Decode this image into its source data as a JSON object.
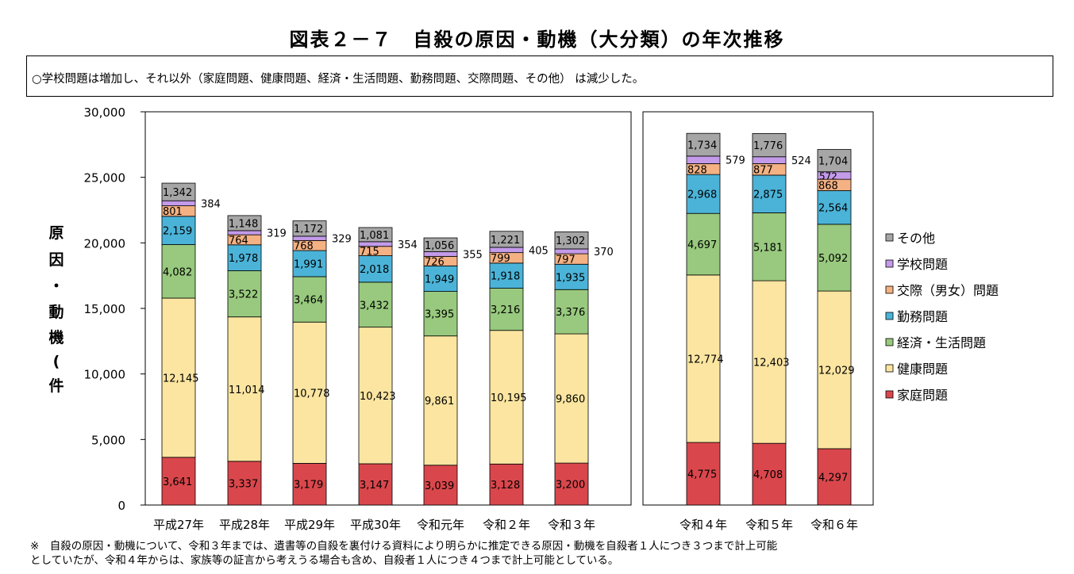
{
  "title": "図表２－７　自殺の原因・動機（大分類）の年次推移",
  "summary": "○学校問題は増加し、それ以外（家庭問題、健康問題、経済・生活問題、勤務問題、交際問題、その他） は減少した。",
  "footnote": {
    "line1": "※　自殺の原因・動機について、令和３年までは、遺書等の自殺を裏付ける資料により明らかに推定できる原因・動機を自殺者１人につき３つまで計上可能",
    "line2": "としていたが、令和４年からは、家族等の証言から考えうる場合も含め、自殺者１人につき４つまで計上可能としている。"
  },
  "chart_data": {
    "type": "bar",
    "stacked": true,
    "title": "",
    "ylabel": "原因・動機(件)",
    "ylim": [
      0,
      30000
    ],
    "yticks": [
      "0",
      "5,000",
      "10,000",
      "15,000",
      "20,000",
      "25,000",
      "30,000"
    ],
    "grid": false,
    "legend_position": "right",
    "panels": [
      {
        "categories": [
          "平成27年",
          "平成28年",
          "平成29年",
          "平成30年",
          "令和元年",
          "令和２年",
          "令和３年"
        ]
      },
      {
        "categories": [
          "令和４年",
          "令和５年",
          "令和６年"
        ]
      }
    ],
    "categories": [
      "平成27年",
      "平成28年",
      "平成29年",
      "平成30年",
      "令和元年",
      "令和２年",
      "令和３年",
      "令和４年",
      "令和５年",
      "令和６年"
    ],
    "series": [
      {
        "name": "家庭問題",
        "color": "#d9474c",
        "values": [
          3641,
          3337,
          3179,
          3147,
          3039,
          3128,
          3200,
          4775,
          4708,
          4297
        ],
        "labels": [
          "3,641",
          "3,337",
          "3,179",
          "3,147",
          "3,039",
          "3,128",
          "3,200",
          "4,775",
          "4,708",
          "4,297"
        ]
      },
      {
        "name": "健康問題",
        "color": "#fbe5a0",
        "values": [
          12145,
          11014,
          10778,
          10423,
          9861,
          10195,
          9860,
          12774,
          12403,
          12029
        ],
        "labels": [
          "12,145",
          "11,014",
          "10,778",
          "10,423",
          "9,861",
          "10,195",
          "9,860",
          "12,774",
          "12,403",
          "12,029"
        ]
      },
      {
        "name": "経済・生活問題",
        "color": "#98c97e",
        "values": [
          4082,
          3522,
          3464,
          3432,
          3395,
          3216,
          3376,
          4697,
          5181,
          5092
        ],
        "labels": [
          "4,082",
          "3,522",
          "3,464",
          "3,432",
          "3,395",
          "3,216",
          "3,376",
          "4,697",
          "5,181",
          "5,092"
        ]
      },
      {
        "name": "勤務問題",
        "color": "#4bb3d8",
        "values": [
          2159,
          1978,
          1991,
          2018,
          1949,
          1918,
          1935,
          2968,
          2875,
          2564
        ],
        "labels": [
          "2,159",
          "1,978",
          "1,991",
          "2,018",
          "1,949",
          "1,918",
          "1,935",
          "2,968",
          "2,875",
          "2,564"
        ]
      },
      {
        "name": "交際（男女）問題",
        "color": "#f4b183",
        "values": [
          801,
          764,
          768,
          715,
          726,
          799,
          797,
          828,
          877,
          868
        ],
        "labels": [
          "801",
          "764",
          "768",
          "715",
          "726",
          "799",
          "797",
          "828",
          "877",
          "868"
        ]
      },
      {
        "name": "学校問題",
        "color": "#c39be9",
        "values": [
          384,
          319,
          329,
          354,
          355,
          405,
          370,
          579,
          524,
          572
        ],
        "labels": [
          "384",
          "319",
          "329",
          "354",
          "355",
          "405",
          "370",
          "579",
          "524",
          "572"
        ]
      },
      {
        "name": "その他",
        "color": "#a6a6a6",
        "values": [
          1342,
          1148,
          1172,
          1081,
          1056,
          1221,
          1302,
          1734,
          1776,
          1704
        ],
        "labels": [
          "1,342",
          "1,148",
          "1,172",
          "1,081",
          "1,056",
          "1,221",
          "1,302",
          "1,734",
          "1,776",
          "1,704"
        ]
      }
    ]
  }
}
